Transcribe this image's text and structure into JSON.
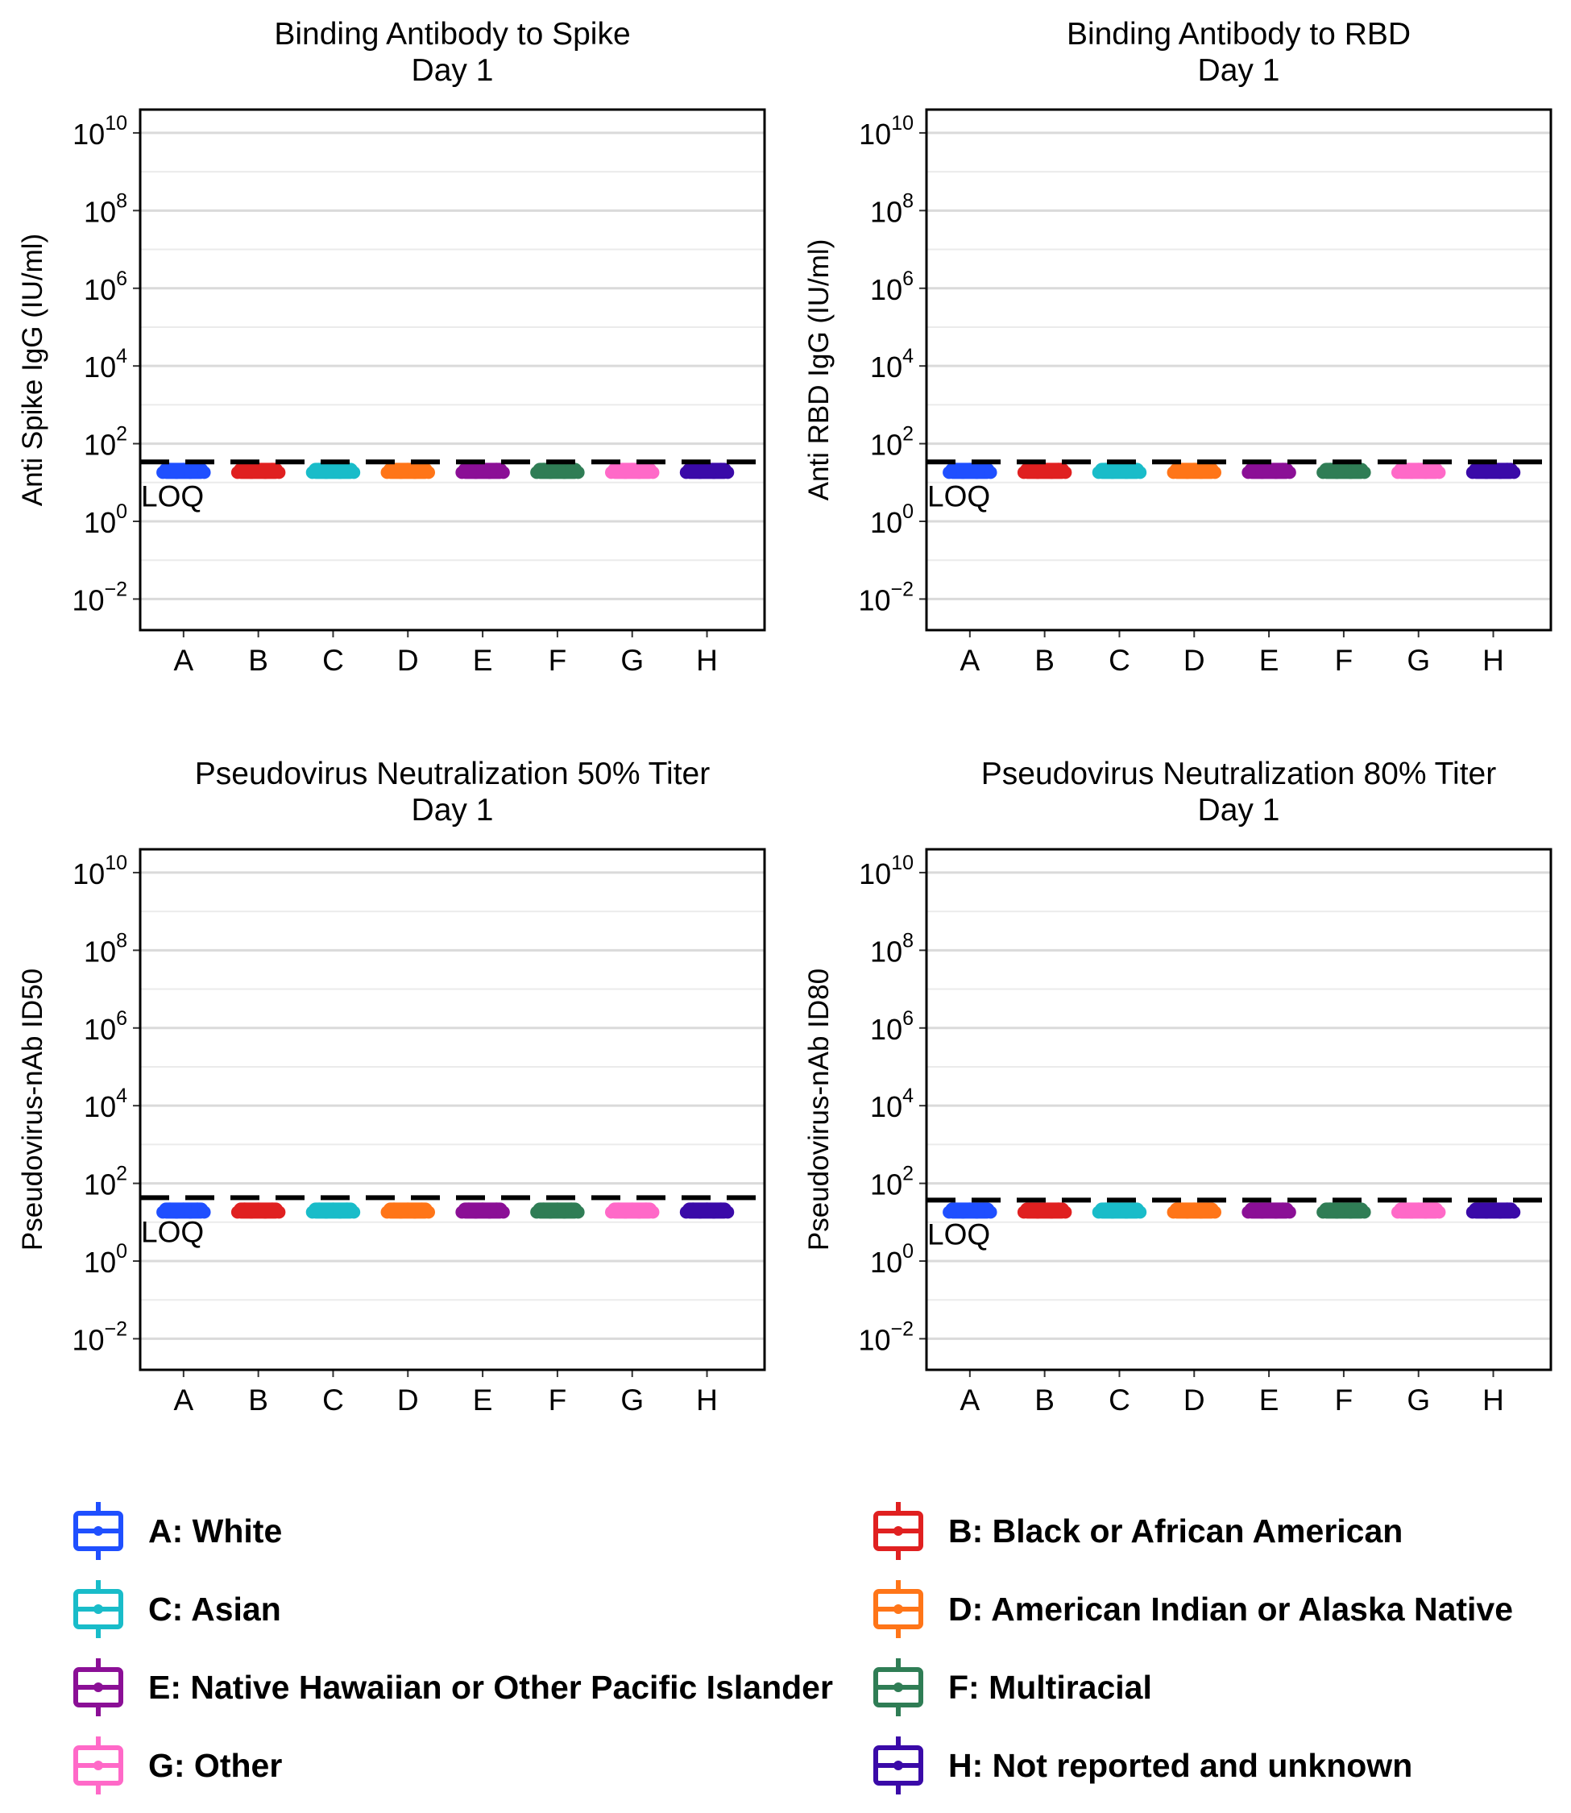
{
  "chart_data": [
    {
      "type": "boxplot",
      "title": "Binding Antibody to Spike",
      "subtitle": "Day 1",
      "ylabel": "Anti Spike IgG (IU/ml)",
      "yscale": "log10",
      "ylim": [
        -2.8,
        10.6
      ],
      "y_ticks": [
        -2,
        0,
        2,
        4,
        6,
        8,
        10
      ],
      "categories": [
        "A",
        "B",
        "C",
        "D",
        "E",
        "F",
        "G",
        "H"
      ],
      "values": [
        1.3,
        1.3,
        1.3,
        1.3,
        1.3,
        1.3,
        1.3,
        1.3
      ],
      "loq": {
        "value": 1.53,
        "label": "LOQ"
      },
      "grid": true
    },
    {
      "type": "boxplot",
      "title": "Binding Antibody to RBD",
      "subtitle": "Day 1",
      "ylabel": "Anti RBD IgG (IU/ml)",
      "yscale": "log10",
      "ylim": [
        -2.8,
        10.6
      ],
      "y_ticks": [
        -2,
        0,
        2,
        4,
        6,
        8,
        10
      ],
      "categories": [
        "A",
        "B",
        "C",
        "D",
        "E",
        "F",
        "G",
        "H"
      ],
      "values": [
        1.3,
        1.3,
        1.3,
        1.3,
        1.3,
        1.3,
        1.3,
        1.3
      ],
      "loq": {
        "value": 1.53,
        "label": "LOQ"
      },
      "grid": true
    },
    {
      "type": "boxplot",
      "title": "Pseudovirus Neutralization 50% Titer",
      "subtitle": "Day 1",
      "ylabel": "Pseudovirus-nAb ID50",
      "yscale": "log10",
      "ylim": [
        -2.8,
        10.6
      ],
      "y_ticks": [
        -2,
        0,
        2,
        4,
        6,
        8,
        10
      ],
      "categories": [
        "A",
        "B",
        "C",
        "D",
        "E",
        "F",
        "G",
        "H"
      ],
      "values": [
        1.3,
        1.3,
        1.3,
        1.3,
        1.3,
        1.3,
        1.3,
        1.3
      ],
      "loq": {
        "value": 1.63,
        "label": "LOQ"
      },
      "grid": true
    },
    {
      "type": "boxplot",
      "title": "Pseudovirus Neutralization 80% Titer",
      "subtitle": "Day 1",
      "ylabel": "Pseudovirus-nAb ID80",
      "yscale": "log10",
      "ylim": [
        -2.8,
        10.6
      ],
      "y_ticks": [
        -2,
        0,
        2,
        4,
        6,
        8,
        10
      ],
      "categories": [
        "A",
        "B",
        "C",
        "D",
        "E",
        "F",
        "G",
        "H"
      ],
      "values": [
        1.3,
        1.3,
        1.3,
        1.3,
        1.3,
        1.3,
        1.3,
        1.3
      ],
      "loq": {
        "value": 1.57,
        "label": "LOQ"
      },
      "grid": true
    }
  ],
  "legend": {
    "items": [
      {
        "key": "A",
        "label": "A: White",
        "color": "#1F4FFF"
      },
      {
        "key": "B",
        "label": "B: Black or African American",
        "color": "#E02020"
      },
      {
        "key": "C",
        "label": "C: Asian",
        "color": "#19BCC9"
      },
      {
        "key": "D",
        "label": "D: American Indian or Alaska Native",
        "color": "#FF7518"
      },
      {
        "key": "E",
        "label": "E: Native Hawaiian or Other Pacific Islander",
        "color": "#8B0F96"
      },
      {
        "key": "F",
        "label": "F: Multiracial",
        "color": "#2F7D55"
      },
      {
        "key": "G",
        "label": "G: Other",
        "color": "#FF69C8"
      },
      {
        "key": "H",
        "label": "H: Not reported and unknown",
        "color": "#3A0AA8"
      }
    ]
  }
}
